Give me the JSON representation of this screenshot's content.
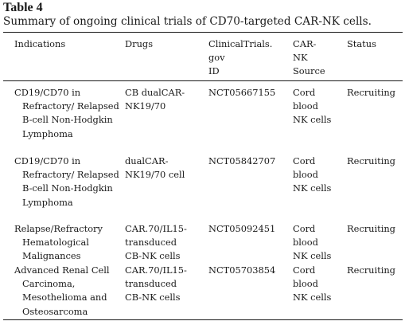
{
  "table": {
    "label": "Table 4",
    "caption": "Summary of ongoing clinical trials of CD70-targeted CAR-NK cells.",
    "headers": {
      "indications": "Indications",
      "drugs": "Drugs",
      "trial_id": "ClinicalTrials.\ngov\nID",
      "source": "CAR-\nNK\nSource",
      "status": "Status"
    },
    "rows": [
      {
        "indication": "CD19/CD70 in Refractory/ Relapsed B-cell Non-Hodgkin Lymphoma",
        "drug": "CB dualCAR-\nNK19/70",
        "trial_id": "NCT05667155",
        "source": "Cord\nblood\nNK cells",
        "status": "Recruiting"
      },
      {
        "indication": "CD19/CD70 in Refractory/ Relapsed B-cell Non-Hodgkin Lymphoma",
        "drug": "dualCAR-\nNK19/70 cell",
        "trial_id": "NCT05842707",
        "source": "Cord\nblood\nNK cells",
        "status": "Recruiting"
      },
      {
        "indication": "Relapse/Refractory Hematological Malignances",
        "drug": "CAR.70/IL15-\ntransduced\nCB-NK cells",
        "trial_id": "NCT05092451",
        "source": "Cord\nblood\nNK cells",
        "status": "Recruiting"
      },
      {
        "indication": "Advanced Renal Cell Carcinoma, Mesothelioma and Osteosarcoma",
        "drug": "CAR.70/IL15-\ntransduced\nCB-NK cells",
        "trial_id": "NCT05703854",
        "source": "Cord\nblood\nNK cells",
        "status": "Recruiting"
      }
    ]
  }
}
